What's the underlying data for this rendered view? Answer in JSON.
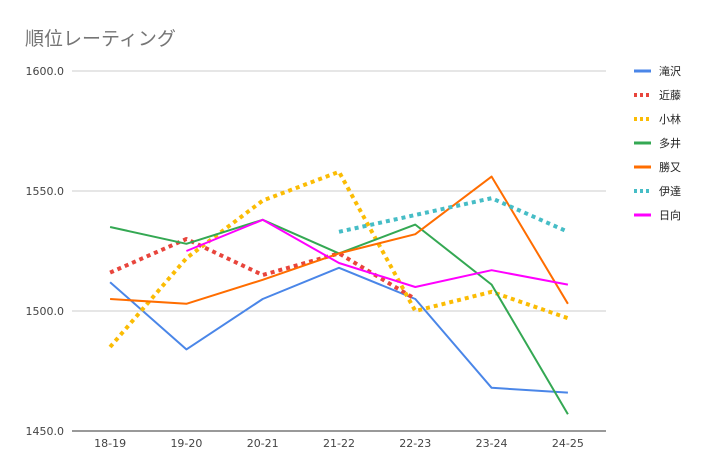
{
  "chart_data": {
    "type": "line",
    "title": "順位レーティング",
    "xlabel": "",
    "ylabel": "",
    "categories": [
      "18-19",
      "19-20",
      "20-21",
      "21-22",
      "22-23",
      "23-24",
      "24-25"
    ],
    "ylim": [
      1450,
      1600
    ],
    "yticks": [
      "1450.0",
      "1500.0",
      "1550.0",
      "1600.0"
    ],
    "legend_position": "right",
    "gridlines": "horizontal",
    "series": [
      {
        "name": "滝沢",
        "color": "#4a86e8",
        "dashed": false,
        "values": [
          1512,
          1484,
          1505,
          1518,
          1505,
          1468,
          1466
        ]
      },
      {
        "name": "近藤",
        "color": "#e8453c",
        "dashed": true,
        "values": [
          1516,
          1530,
          1515,
          1524,
          1505,
          null,
          null
        ]
      },
      {
        "name": "小林",
        "color": "#fbbc04",
        "dashed": true,
        "values": [
          1485,
          1522,
          1546,
          1558,
          1500,
          1508,
          1497
        ]
      },
      {
        "name": "多井",
        "color": "#34a853",
        "dashed": false,
        "values": [
          1535,
          1528,
          1538,
          1524,
          1536,
          1511,
          1457
        ]
      },
      {
        "name": "勝又",
        "color": "#ff6d00",
        "dashed": false,
        "values": [
          1505,
          1503,
          1513,
          1524,
          1532,
          1556,
          1503
        ]
      },
      {
        "name": "伊達",
        "color": "#46bdc6",
        "dashed": true,
        "values": [
          null,
          null,
          null,
          1533,
          1540,
          1547,
          1533
        ]
      },
      {
        "name": "日向",
        "color": "#ff00ff",
        "dashed": false,
        "values": [
          null,
          1525,
          1538,
          1520,
          1510,
          1517,
          1511
        ]
      }
    ]
  }
}
